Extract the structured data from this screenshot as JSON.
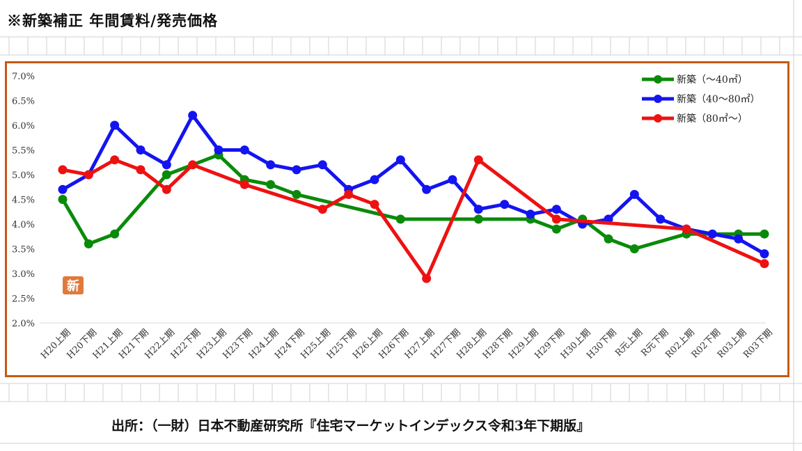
{
  "page": {
    "title": "※新築補正 年間賃料/発売価格",
    "source": "出所：（一財）日本不動産研究所『住宅マーケットインデックス令和3年下期版』",
    "badge": "新"
  },
  "chart_data": {
    "type": "line",
    "title": "",
    "xlabel": "",
    "ylabel": "",
    "ylim": [
      2.0,
      7.0
    ],
    "yticks": [
      "7.0%",
      "6.5%",
      "6.0%",
      "5.5%",
      "5.0%",
      "4.5%",
      "4.0%",
      "3.5%",
      "3.0%",
      "2.5%",
      "2.0%"
    ],
    "grid": "horizontal-none",
    "legend_position": "top-right",
    "categories": [
      "H20上期",
      "H20下期",
      "H21上期",
      "H21下期",
      "H22上期",
      "H22下期",
      "H23上期",
      "H23下期",
      "H24上期",
      "H24下期",
      "H25上期",
      "H25下期",
      "H26上期",
      "H26下期",
      "H27上期",
      "H27下期",
      "H28上期",
      "H28下期",
      "H29上期",
      "H29下期",
      "H30上期",
      "H30下期",
      "R元上期",
      "R元下期",
      "R02上期",
      "R02下期",
      "R03上期",
      "R03下期"
    ],
    "series": [
      {
        "name": "新築（～40㎡）",
        "color": "#0a8a0a",
        "values": [
          4.5,
          3.6,
          3.8,
          null,
          5.0,
          null,
          5.4,
          4.9,
          4.8,
          4.6,
          null,
          null,
          null,
          4.1,
          null,
          null,
          4.1,
          null,
          4.1,
          3.9,
          4.1,
          3.7,
          3.5,
          null,
          3.8,
          null,
          3.8,
          3.8
        ]
      },
      {
        "name": "新築（40～80㎡）",
        "color": "#1414f0",
        "values": [
          4.7,
          5.0,
          6.0,
          5.5,
          5.2,
          6.2,
          5.5,
          5.5,
          5.2,
          5.1,
          5.2,
          4.7,
          4.9,
          5.3,
          4.7,
          4.9,
          4.3,
          4.4,
          4.2,
          4.3,
          4.0,
          4.1,
          4.6,
          4.1,
          3.9,
          3.8,
          3.7,
          3.4
        ]
      },
      {
        "name": "新築（80㎡～）",
        "color": "#ee1111",
        "values": [
          5.1,
          5.0,
          5.3,
          5.1,
          4.7,
          5.2,
          null,
          4.8,
          null,
          null,
          4.3,
          4.6,
          4.4,
          null,
          2.9,
          null,
          5.3,
          null,
          null,
          4.1,
          null,
          null,
          null,
          null,
          3.9,
          null,
          null,
          3.2
        ]
      }
    ]
  }
}
